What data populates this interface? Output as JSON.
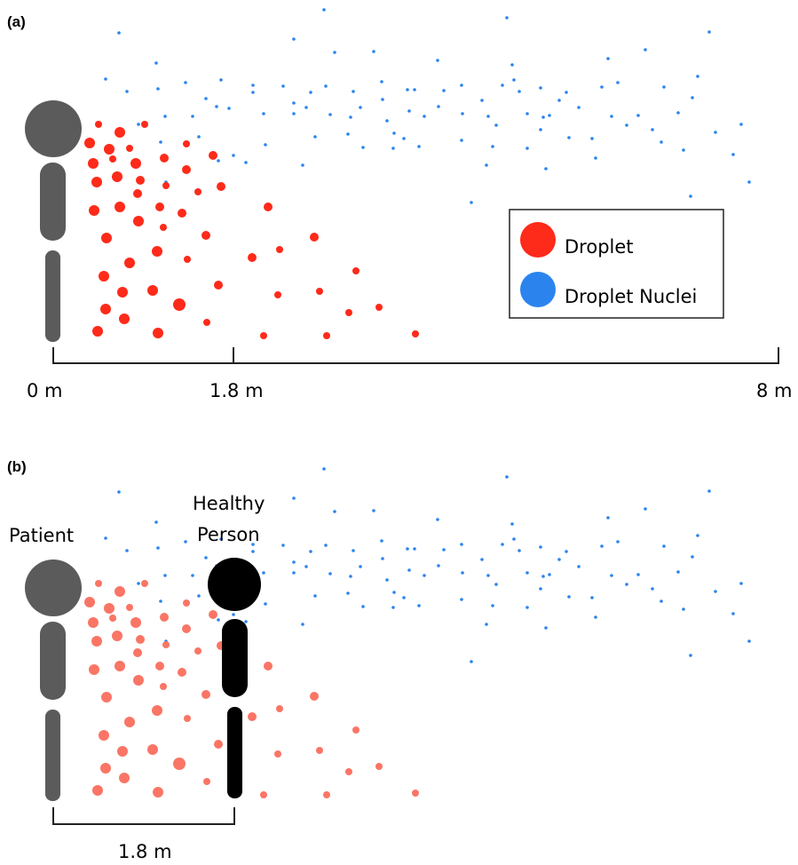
{
  "panels": {
    "a": {
      "label": "(a)",
      "scale_labels": [
        "0 m",
        "1.8 m",
        "8 m"
      ],
      "legend": {
        "droplet_label": "Droplet",
        "nuclei_label": "Droplet Nuclei"
      }
    },
    "b": {
      "label": "(b)",
      "patient_label": "Patient",
      "healthy_label_line1": "Healthy",
      "healthy_label_line2": "Person",
      "distance_label": "1.8 m"
    }
  },
  "colors": {
    "droplet": "#fe2a1a",
    "droplet_faded": "#fa7565",
    "nuclei": "#2b84ee",
    "patient": "#5b5b5b",
    "healthy": "#000000"
  }
}
